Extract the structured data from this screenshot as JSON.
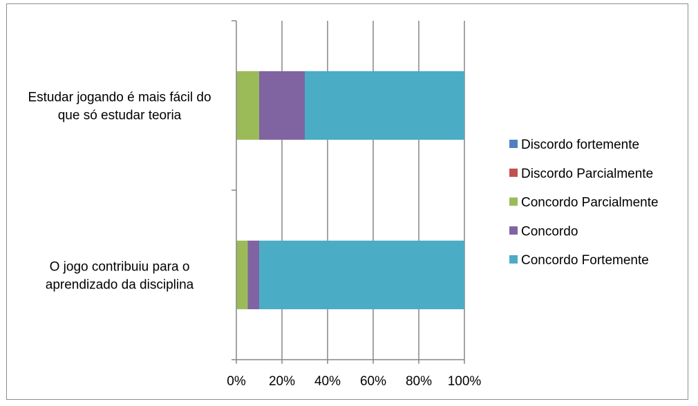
{
  "chart_data": {
    "type": "bar",
    "orientation": "horizontal",
    "stacked": "percent",
    "categories": [
      [
        "Estudar jogando é mais fácil do",
        "que só estudar teoria"
      ],
      [
        "O jogo contribuiu para o",
        "aprendizado da disciplina"
      ]
    ],
    "series": [
      {
        "name": "Discordo fortemente",
        "color": "#4f81bd",
        "values": [
          0,
          0
        ]
      },
      {
        "name": "Discordo Parcialmente",
        "color": "#c0504d",
        "values": [
          0,
          0
        ]
      },
      {
        "name": "Concordo Parcialmente",
        "color": "#9bbb59",
        "values": [
          10,
          5
        ]
      },
      {
        "name": "Concordo",
        "color": "#8064a2",
        "values": [
          20,
          5
        ]
      },
      {
        "name": "Concordo Fortemente",
        "color": "#4bacc6",
        "values": [
          70,
          90
        ]
      }
    ],
    "x_ticks": [
      "0%",
      "20%",
      "40%",
      "60%",
      "80%",
      "100%"
    ],
    "xlim": [
      0,
      100
    ],
    "grid": "vertical",
    "legend_position": "right",
    "title": "",
    "xlabel": "",
    "ylabel": ""
  }
}
